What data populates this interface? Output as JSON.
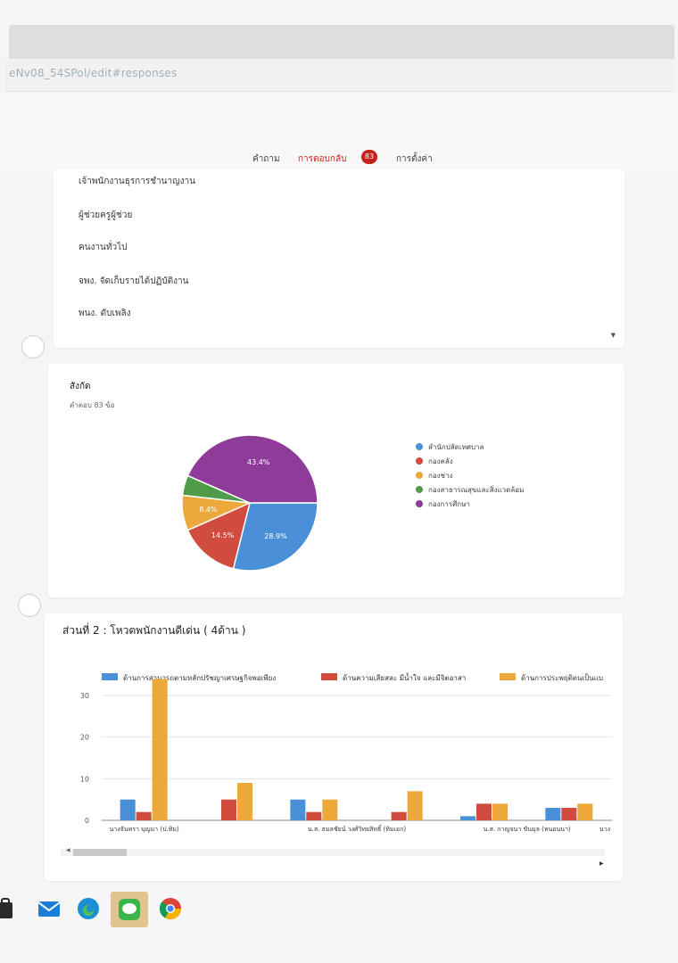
{
  "browser": {
    "url_fragment": "eNv08_54SPol/edit#responses"
  },
  "tabs": {
    "questions_label": "คำถาม",
    "responses_label": "การตอบกลับ",
    "responses_count": "83",
    "settings_label": "การตั้งค่า"
  },
  "position_list": {
    "items": [
      "เจ้าพนักงานธุรการชำนาญงาน",
      "ผู้ช่วยครูผู้ช่วย",
      "คนงานทั่วไป",
      "จพง. จัดเก็บรายได้ปฏิบัติงาน",
      "พนง. ดับเพลิง"
    ]
  },
  "affiliation": {
    "title": "สังกัด",
    "subtitle": "คำตอบ 83 ข้อ"
  },
  "section2": {
    "title": "ส่วนที่ 2 : โหวตพนักงานดีเด่น ( 4ด้าน )"
  },
  "colors": {
    "accent": "#c5221f",
    "blue": "#4a90d9",
    "red": "#d14b3f",
    "orange": "#eca83a",
    "green": "#4f9b4a",
    "purple": "#8e3b9a"
  },
  "chart_data": [
    {
      "type": "pie",
      "title": "สังกัด",
      "subtitle": "คำตอบ 83 ข้อ",
      "legend_position": "right",
      "slices": [
        {
          "label": "สำนักปลัดเทศบาล",
          "value": 28.9,
          "display": "28.9%",
          "color": "#4a90d9"
        },
        {
          "label": "กองคลัง",
          "value": 14.5,
          "display": "14.5%",
          "color": "#d14b3f"
        },
        {
          "label": "กองช่าง",
          "value": 8.4,
          "display": "8.4%",
          "color": "#eca83a"
        },
        {
          "label": "กองสาธารณสุขและสิ่งแวดล้อม",
          "value": 4.8,
          "display": "",
          "color": "#4f9b4a"
        },
        {
          "label": "กองการศึกษา",
          "value": 43.4,
          "display": "43.4%",
          "color": "#8e3b9a"
        }
      ]
    },
    {
      "type": "bar",
      "legend_position": "top",
      "ylim": [
        0,
        36
      ],
      "yticks": [
        0,
        10,
        20,
        30
      ],
      "grid": true,
      "categories": [
        "c1",
        "c2",
        "c3",
        "c4",
        "c5",
        "c6"
      ],
      "category_labels": [
        "นางจันทรา บุญมา (ป.ทิม)",
        "",
        "น.ส. ธมลชัยน์ วงศ์วิทยสิทธิ์ (ทิมเอก)",
        "",
        "น.ส. กาญจนา ขันมุล (หนอนนา)",
        ""
      ],
      "trailing_label": "นาง",
      "series": [
        {
          "name": "ด้านการสามารถตามหลักปรัชญาเศรษฐกิจพอเพียง",
          "color": "#4a90d9",
          "values": [
            5,
            0,
            5,
            0,
            1,
            3
          ]
        },
        {
          "name": "ด้านความเสียสละ มีน้ำใจ และมีจิตอาสา",
          "color": "#d14b3f",
          "values": [
            2,
            5,
            2,
            2,
            4,
            3
          ]
        },
        {
          "name": "ด้านการประพฤติตนเป็นแบ",
          "color": "#eca83a",
          "values": [
            34,
            9,
            5,
            7,
            4,
            4
          ]
        }
      ]
    }
  ]
}
